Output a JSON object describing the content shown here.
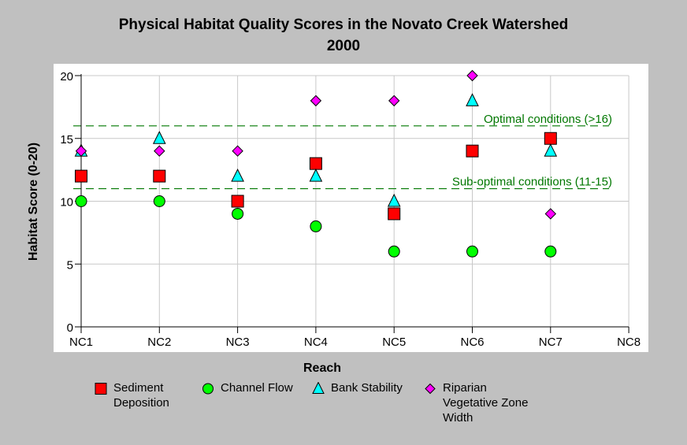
{
  "chart_data": {
    "type": "scatter",
    "title": "Physical Habitat Quality Scores in the Novato Creek Watershed",
    "subtitle": "2000",
    "xlabel": "Reach",
    "ylabel": "Habitat Score (0-20)",
    "categories": [
      "NC1",
      "NC2",
      "NC3",
      "NC4",
      "NC5",
      "NC6",
      "NC7",
      "NC8"
    ],
    "ylim": [
      0,
      20
    ],
    "yticks": [
      0,
      5,
      10,
      15,
      20
    ],
    "grid": true,
    "legend_position": "bottom",
    "series": [
      {
        "name": "Sediment\nDeposition",
        "marker": "square",
        "color": "#ff0000",
        "values": [
          12,
          12,
          10,
          13,
          9,
          14,
          15,
          null
        ]
      },
      {
        "name": "Channel Flow",
        "marker": "circle",
        "color": "#00ff00",
        "values": [
          10,
          10,
          9,
          8,
          6,
          6,
          6,
          null
        ]
      },
      {
        "name": "Bank Stability",
        "marker": "triangle",
        "color": "#00ffff",
        "values": [
          14,
          15,
          12,
          12,
          10,
          18,
          14,
          null
        ]
      },
      {
        "name": "Riparian\nVegetative Zone\nWidth",
        "marker": "diamond",
        "color": "#ff00ff",
        "values": [
          14,
          14,
          14,
          18,
          18,
          20,
          9,
          null
        ]
      }
    ],
    "reference_lines": [
      {
        "y": 16,
        "label": "Optimal conditions (>16)",
        "color": "#007700"
      },
      {
        "y": 11,
        "label": "Sub-optimal conditions (11-15)",
        "color": "#007700"
      }
    ]
  }
}
